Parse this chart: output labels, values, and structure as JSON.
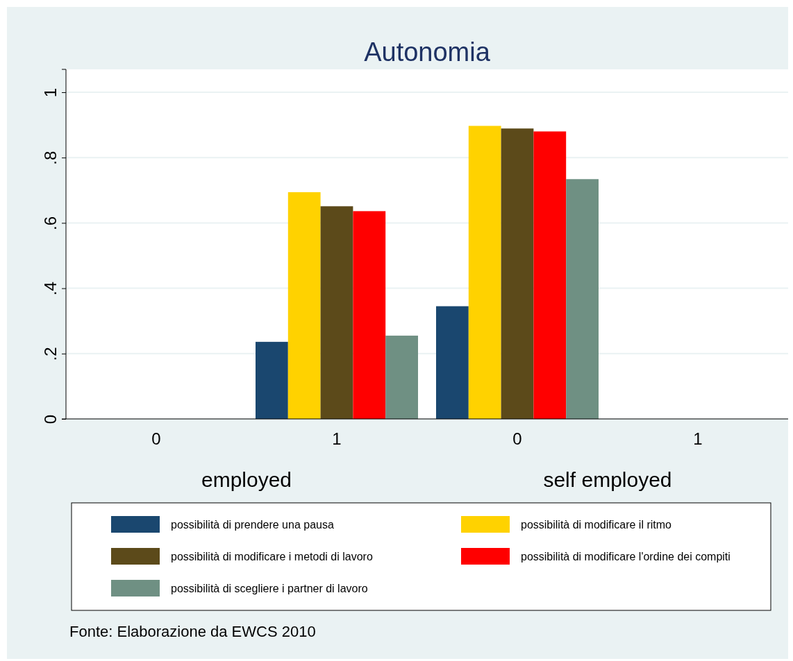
{
  "chart_data": {
    "type": "bar",
    "title": "Autonomia",
    "categories": [
      "0",
      "1",
      "0",
      "1"
    ],
    "series": [
      {
        "name": "possibilità di prendere una pausa",
        "color": "#1a476f",
        "values": [
          null,
          0.236,
          0.345,
          null
        ]
      },
      {
        "name": "possibilità di modificare il ritmo",
        "color": "#ffd200",
        "values": [
          null,
          0.694,
          0.897,
          null
        ]
      },
      {
        "name": "possibilità di modificare i metodi di lavoro",
        "color": "#5c4a1a",
        "values": [
          null,
          0.651,
          0.889,
          null
        ]
      },
      {
        "name": "possibilità di modificare l'ordine dei compiti",
        "color": "#ff0000",
        "values": [
          null,
          0.636,
          0.88,
          null
        ]
      },
      {
        "name": "possibilità di scegliere i partner di lavoro",
        "color": "#6f9083",
        "values": [
          null,
          0.255,
          0.734,
          null
        ]
      }
    ],
    "ylim": [
      0,
      1.07
    ],
    "yticks": [
      {
        "value": 0,
        "label": "0"
      },
      {
        "value": 0.2,
        "label": ".2"
      },
      {
        "value": 0.4,
        "label": ".4"
      },
      {
        "value": 0.6,
        "label": ".6"
      },
      {
        "value": 0.8,
        "label": ".8"
      },
      {
        "value": 1,
        "label": "1"
      }
    ],
    "grid": "y",
    "legend": "bottom",
    "annotations": [
      "employed",
      "self employed",
      "Fonte: Elaborazione da EWCS 2010"
    ]
  }
}
